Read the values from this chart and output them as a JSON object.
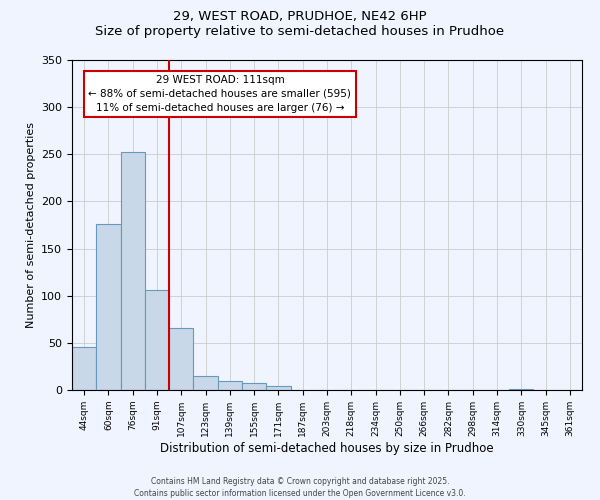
{
  "title": "29, WEST ROAD, PRUDHOE, NE42 6HP",
  "subtitle": "Size of property relative to semi-detached houses in Prudhoe",
  "xlabel": "Distribution of semi-detached houses by size in Prudhoe",
  "ylabel": "Number of semi-detached properties",
  "bin_labels": [
    "44sqm",
    "60sqm",
    "76sqm",
    "91sqm",
    "107sqm",
    "123sqm",
    "139sqm",
    "155sqm",
    "171sqm",
    "187sqm",
    "203sqm",
    "218sqm",
    "234sqm",
    "250sqm",
    "266sqm",
    "282sqm",
    "298sqm",
    "314sqm",
    "330sqm",
    "345sqm",
    "361sqm"
  ],
  "bin_values": [
    46,
    176,
    252,
    106,
    66,
    15,
    10,
    7,
    4,
    0,
    0,
    0,
    0,
    0,
    0,
    0,
    0,
    0,
    1,
    0,
    0
  ],
  "bar_color": "#c8d8e8",
  "bar_edge_color": "#6699bb",
  "grid_color": "#cccccc",
  "background_color": "#f0f4ff",
  "vline_x_index": 4,
  "vline_color": "#cc0000",
  "annotation_text": "29 WEST ROAD: 111sqm\n← 88% of semi-detached houses are smaller (595)\n11% of semi-detached houses are larger (76) →",
  "annotation_box_color": "#ffffff",
  "annotation_box_edge": "#cc0000",
  "ylim": [
    0,
    350
  ],
  "yticks": [
    0,
    50,
    100,
    150,
    200,
    250,
    300,
    350
  ],
  "footer1": "Contains HM Land Registry data © Crown copyright and database right 2025.",
  "footer2": "Contains public sector information licensed under the Open Government Licence v3.0."
}
